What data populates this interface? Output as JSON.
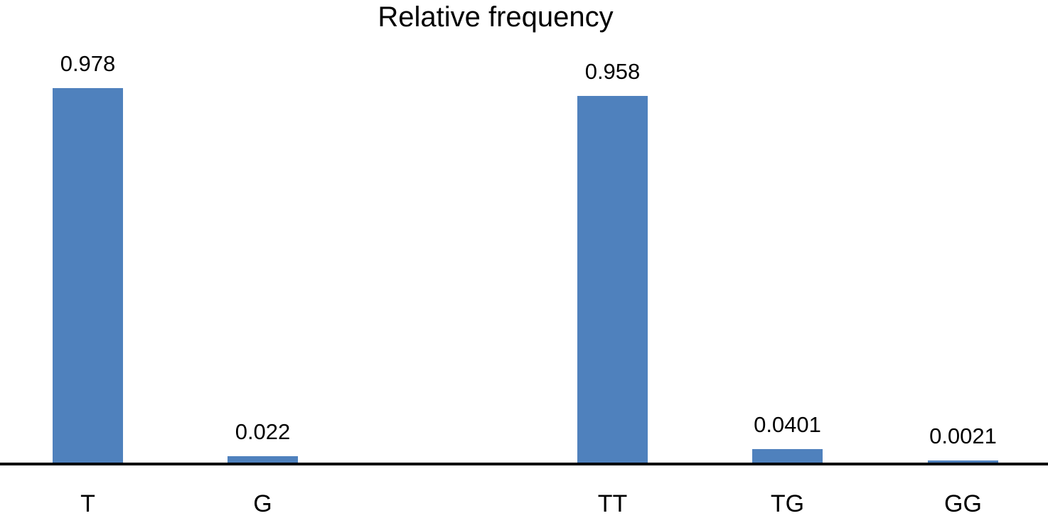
{
  "chart_data": {
    "type": "bar",
    "title": "Relative frequency",
    "categories": [
      "T",
      "G",
      "TT",
      "TG",
      "GG"
    ],
    "values": [
      0.978,
      0.022,
      0.958,
      0.0401,
      0.0021
    ],
    "value_labels": [
      "0.978",
      "0.022",
      "0.958",
      "0.0401",
      "0.0021"
    ],
    "xlabel": "",
    "ylabel": "",
    "ylim": [
      0,
      1
    ],
    "grid": "off",
    "legend": "none",
    "y_axis_visible": false,
    "x_axis_visible": true,
    "bar_color": "#4F81BD",
    "axis_color": "#000000",
    "text_color": "#000000",
    "background_color": "#ffffff",
    "layout_note": "Two visual groups: single bases (T, G) and dinucleotides (TT, TG, GG) separated by one empty category slot",
    "points": [
      {
        "category": "T",
        "value": 0.978,
        "value_label": "0.978"
      },
      {
        "category": "G",
        "value": 0.022,
        "value_label": "0.022"
      },
      {
        "category": "TT",
        "value": 0.958,
        "value_label": "0.958"
      },
      {
        "category": "TG",
        "value": 0.0401,
        "value_label": "0.0401"
      },
      {
        "category": "GG",
        "value": 0.0021,
        "value_label": "0.0021"
      }
    ]
  }
}
